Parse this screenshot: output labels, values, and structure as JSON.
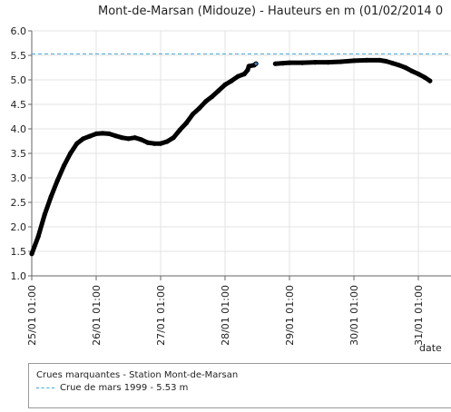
{
  "chart_data": {
    "type": "line",
    "title": "Mont-de-Marsan (Midouze) - Hauteurs en m (01/02/2014 0",
    "xlabel": "date",
    "ylabel": "",
    "ylim": [
      1.0,
      6.0
    ],
    "yticks": [
      "1.0",
      "1.5",
      "2.0",
      "2.5",
      "3.0",
      "3.5",
      "4.0",
      "4.5",
      "5.0",
      "5.5",
      "6.0"
    ],
    "xticks": [
      "25/01 01:00",
      "26/01 01:00",
      "27/01 01:00",
      "28/01 01:00",
      "29/01 01:00",
      "30/01 01:00",
      "31/01 01:00"
    ],
    "grid": true,
    "series": [
      {
        "color": "#000000",
        "points": [
          [
            0.0,
            1.45
          ],
          [
            0.1,
            1.8
          ],
          [
            0.2,
            2.25
          ],
          [
            0.3,
            2.62
          ],
          [
            0.4,
            2.95
          ],
          [
            0.5,
            3.25
          ],
          [
            0.6,
            3.5
          ],
          [
            0.7,
            3.7
          ],
          [
            0.8,
            3.8
          ],
          [
            0.9,
            3.85
          ],
          [
            1.0,
            3.9
          ],
          [
            1.1,
            3.91
          ],
          [
            1.2,
            3.9
          ],
          [
            1.3,
            3.86
          ],
          [
            1.4,
            3.82
          ],
          [
            1.5,
            3.8
          ],
          [
            1.6,
            3.82
          ],
          [
            1.7,
            3.78
          ],
          [
            1.8,
            3.72
          ],
          [
            1.9,
            3.7
          ],
          [
            2.0,
            3.7
          ],
          [
            2.1,
            3.74
          ],
          [
            2.2,
            3.82
          ],
          [
            2.3,
            3.98
          ],
          [
            2.4,
            4.12
          ],
          [
            2.5,
            4.3
          ],
          [
            2.6,
            4.42
          ],
          [
            2.7,
            4.56
          ],
          [
            2.8,
            4.66
          ],
          [
            2.9,
            4.78
          ],
          [
            3.0,
            4.9
          ],
          [
            3.1,
            4.98
          ],
          [
            3.2,
            5.07
          ],
          [
            3.3,
            5.12
          ],
          [
            3.35,
            5.2
          ],
          [
            3.37,
            5.28
          ],
          [
            3.45,
            5.3
          ],
          [
            3.48,
            5.33
          ]
        ]
      },
      {
        "color": "#000000",
        "points": [
          [
            3.78,
            5.33
          ],
          [
            3.9,
            5.34
          ],
          [
            4.0,
            5.35
          ],
          [
            4.2,
            5.35
          ],
          [
            4.4,
            5.36
          ],
          [
            4.6,
            5.36
          ],
          [
            4.8,
            5.37
          ],
          [
            5.0,
            5.39
          ],
          [
            5.2,
            5.4
          ],
          [
            5.4,
            5.4
          ],
          [
            5.5,
            5.38
          ],
          [
            5.6,
            5.34
          ],
          [
            5.7,
            5.3
          ],
          [
            5.8,
            5.25
          ],
          [
            5.9,
            5.18
          ],
          [
            6.0,
            5.12
          ],
          [
            6.1,
            5.05
          ],
          [
            6.18,
            4.98
          ]
        ]
      }
    ],
    "reference_line": {
      "value": 5.53,
      "color": "#3ba8d9",
      "label": "Crue de mars 1999 - 5.53 m"
    },
    "legend": {
      "placement": "bottom",
      "title": "Crues marquantes - Station Mont-de-Marsan",
      "entries": [
        "Crue de mars 1999 - 5.53 m"
      ]
    },
    "colors": {
      "grid": "#e3e3e3",
      "axis": "#666666",
      "line": "#000000",
      "reference": "#3ba8d9"
    }
  }
}
